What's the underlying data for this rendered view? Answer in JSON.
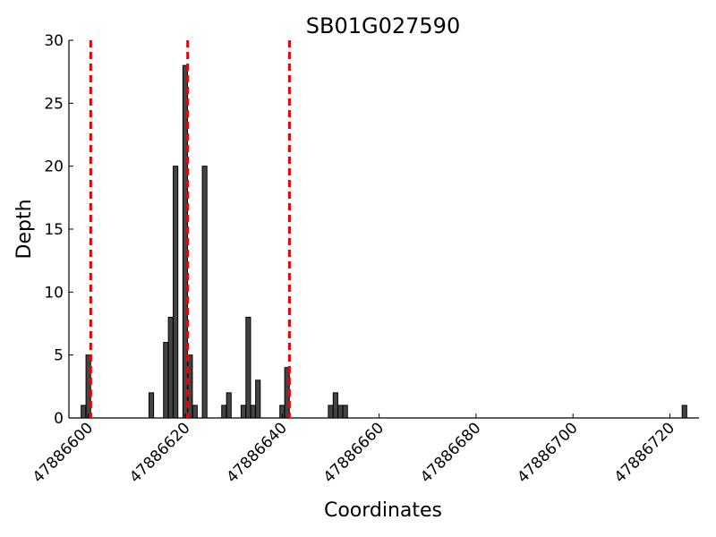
{
  "chart_data": {
    "type": "bar",
    "title": "SB01G027590",
    "xlabel": "Coordinates",
    "ylabel": "Depth",
    "xlim": [
      47886596,
      47886726
    ],
    "ylim": [
      0,
      30
    ],
    "x_ticks": [
      47886600,
      47886620,
      47886640,
      47886660,
      47886680,
      47886700,
      47886720
    ],
    "y_ticks": [
      0,
      5,
      10,
      15,
      20,
      25,
      30
    ],
    "bar_color": "#444444",
    "grid": false,
    "bars": [
      {
        "x": 47886599,
        "y": 1
      },
      {
        "x": 47886600,
        "y": 5
      },
      {
        "x": 47886613,
        "y": 2
      },
      {
        "x": 47886616,
        "y": 6
      },
      {
        "x": 47886617,
        "y": 8
      },
      {
        "x": 47886618,
        "y": 20
      },
      {
        "x": 47886620,
        "y": 28
      },
      {
        "x": 47886621,
        "y": 5
      },
      {
        "x": 47886622,
        "y": 1
      },
      {
        "x": 47886624,
        "y": 20
      },
      {
        "x": 47886628,
        "y": 1
      },
      {
        "x": 47886629,
        "y": 2
      },
      {
        "x": 47886632,
        "y": 1
      },
      {
        "x": 47886633,
        "y": 8
      },
      {
        "x": 47886634,
        "y": 1
      },
      {
        "x": 47886635,
        "y": 3
      },
      {
        "x": 47886640,
        "y": 1
      },
      {
        "x": 47886641,
        "y": 4
      },
      {
        "x": 47886650,
        "y": 1
      },
      {
        "x": 47886651,
        "y": 2
      },
      {
        "x": 47886652,
        "y": 1
      },
      {
        "x": 47886653,
        "y": 1
      },
      {
        "x": 47886723,
        "y": 1
      }
    ],
    "reference_lines": {
      "x": [
        47886600.5,
        47886620.5,
        47886641.5
      ],
      "color": "#ee0000",
      "style": "dashed"
    }
  }
}
